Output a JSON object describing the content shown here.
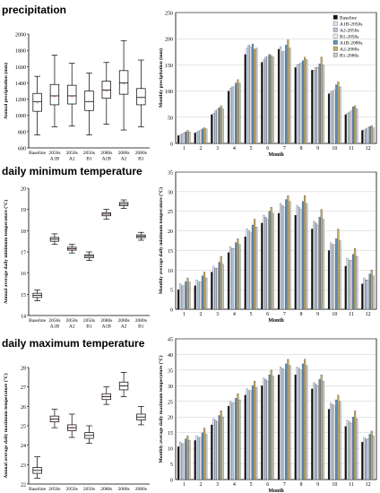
{
  "sections": [
    {
      "title": "precipitation"
    },
    {
      "title": "daily minimum temperature"
    },
    {
      "title": "daily maximum temperature"
    }
  ],
  "chart_data": [
    {
      "type": "box",
      "section": 0,
      "ylabel": "Annual precipitation (mm)",
      "ylim": [
        600,
        2000
      ],
      "yticks": [
        600,
        800,
        1000,
        1200,
        1400,
        1600,
        1800,
        2000
      ],
      "categories": [
        "Baseline",
        "2050s A1B",
        "2050s A2",
        "2050s B1",
        "2080s A1B",
        "2080s A2",
        "2080s B1"
      ],
      "boxes": [
        {
          "min": 760,
          "q1": 1050,
          "median": 1170,
          "q3": 1270,
          "max": 1480,
          "mean": 1150
        },
        {
          "min": 860,
          "q1": 1130,
          "median": 1240,
          "q3": 1380,
          "max": 1740,
          "mean": 1230
        },
        {
          "min": 870,
          "q1": 1140,
          "median": 1240,
          "q3": 1370,
          "max": 1640,
          "mean": 1230
        },
        {
          "min": 760,
          "q1": 1060,
          "median": 1170,
          "q3": 1300,
          "max": 1520,
          "mean": 1170
        },
        {
          "min": 890,
          "q1": 1210,
          "median": 1310,
          "q3": 1420,
          "max": 1650,
          "mean": 1300
        },
        {
          "min": 820,
          "q1": 1260,
          "median": 1400,
          "q3": 1550,
          "max": 1920,
          "mean": 1380
        },
        {
          "min": 860,
          "q1": 1130,
          "median": 1220,
          "q3": 1330,
          "max": 1680,
          "mean": 1220
        }
      ]
    },
    {
      "type": "bar",
      "section": 0,
      "xlabel": "Month",
      "ylabel": "Monthly precipitation (mm)",
      "ylim": [
        0,
        250
      ],
      "yticks": [
        0,
        50,
        100,
        150,
        200,
        250
      ],
      "categories": [
        "1",
        "2",
        "3",
        "4",
        "5",
        "6",
        "7",
        "8",
        "9",
        "10",
        "11",
        "12"
      ],
      "legend_position": "top-right",
      "series": [
        {
          "name": "Baseline",
          "color": "#111111",
          "values": [
            15,
            20,
            55,
            100,
            170,
            155,
            180,
            145,
            140,
            95,
            55,
            25
          ]
        },
        {
          "name": "A1B-2050s",
          "color": "#d9e3f2",
          "values": [
            16,
            22,
            58,
            105,
            182,
            160,
            185,
            150,
            140,
            98,
            58,
            26
          ]
        },
        {
          "name": "A2-2050s",
          "color": "#b9c7da",
          "values": [
            18,
            24,
            62,
            108,
            188,
            165,
            175,
            152,
            145,
            100,
            60,
            28
          ]
        },
        {
          "name": "B1-2050s",
          "color": "#eeeeee",
          "values": [
            20,
            25,
            65,
            108,
            184,
            166,
            176,
            154,
            145,
            102,
            62,
            30
          ]
        },
        {
          "name": "A1B-2080s",
          "color": "#5f8fb8",
          "values": [
            22,
            28,
            68,
            115,
            190,
            170,
            188,
            158,
            152,
            112,
            70,
            32
          ]
        },
        {
          "name": "A2-2080s",
          "color": "#c8ad62",
          "values": [
            25,
            30,
            72,
            122,
            180,
            168,
            198,
            165,
            165,
            118,
            72,
            34
          ]
        },
        {
          "name": "B1-2080s",
          "color": "#c9c9c9",
          "values": [
            22,
            28,
            66,
            115,
            182,
            165,
            182,
            160,
            150,
            108,
            66,
            30
          ]
        }
      ]
    },
    {
      "type": "box",
      "section": 1,
      "ylabel": "Annual average daily minimum temperature (°C)",
      "ylim": [
        14,
        20
      ],
      "yticks": [
        14,
        15,
        16,
        17,
        18,
        19,
        20
      ],
      "categories": [
        "Baseline",
        "2050s A1B",
        "2050s A2",
        "2050s B1",
        "2080s A1B",
        "2080s A2",
        "2080s B1"
      ],
      "boxes": [
        {
          "min": 14.7,
          "q1": 14.85,
          "median": 14.95,
          "q3": 15.05,
          "max": 15.2,
          "mean": 14.95
        },
        {
          "min": 17.35,
          "q1": 17.5,
          "median": 17.6,
          "q3": 17.68,
          "max": 17.85,
          "mean": 17.58
        },
        {
          "min": 16.95,
          "q1": 17.08,
          "median": 17.15,
          "q3": 17.22,
          "max": 17.35,
          "mean": 17.15
        },
        {
          "min": 16.6,
          "q1": 16.72,
          "median": 16.8,
          "q3": 16.87,
          "max": 17.0,
          "mean": 16.8
        },
        {
          "min": 18.55,
          "q1": 18.7,
          "median": 18.78,
          "q3": 18.85,
          "max": 19.0,
          "mean": 18.78
        },
        {
          "min": 19.05,
          "q1": 19.17,
          "median": 19.25,
          "q3": 19.33,
          "max": 19.45,
          "mean": 19.25
        },
        {
          "min": 17.55,
          "q1": 17.67,
          "median": 17.73,
          "q3": 17.8,
          "max": 17.92,
          "mean": 17.73
        }
      ]
    },
    {
      "type": "bar",
      "section": 1,
      "xlabel": "Month",
      "ylabel": "Monthly average daily minimum temperature (°C)",
      "ylim": [
        0,
        35
      ],
      "yticks": [
        0,
        5,
        10,
        15,
        20,
        25,
        30,
        35
      ],
      "categories": [
        "1",
        "2",
        "3",
        "4",
        "5",
        "6",
        "7",
        "8",
        "9",
        "10",
        "11",
        "12"
      ],
      "series": [
        {
          "name": "Baseline",
          "color": "#111111",
          "values": [
            5,
            6,
            9.5,
            14.5,
            18.5,
            22,
            24.5,
            24,
            20.5,
            15,
            11,
            6.5
          ]
        },
        {
          "name": "A1B-2050s",
          "color": "#d9e3f2",
          "values": [
            6.5,
            7.5,
            11,
            16,
            20.5,
            24,
            27,
            26.5,
            22.5,
            17,
            13,
            8
          ]
        },
        {
          "name": "A2-2050s",
          "color": "#b9c7da",
          "values": [
            6,
            7,
            10.5,
            15.5,
            20,
            23.5,
            26.5,
            26,
            22,
            16.5,
            12.5,
            7.5
          ]
        },
        {
          "name": "B1-2050s",
          "color": "#eeeeee",
          "values": [
            6,
            7,
            10.5,
            15.5,
            19.5,
            23,
            26,
            25.5,
            21.5,
            16.5,
            12.5,
            7.5
          ]
        },
        {
          "name": "A1B-2080s",
          "color": "#5f8fb8",
          "values": [
            7,
            8.5,
            12,
            17,
            21.5,
            25,
            28,
            27.5,
            23.5,
            18,
            14,
            9
          ]
        },
        {
          "name": "A2-2080s",
          "color": "#c8ad62",
          "values": [
            8,
            9.5,
            13.5,
            18,
            23,
            26,
            29,
            29,
            25.5,
            20.5,
            15.5,
            10
          ]
        },
        {
          "name": "B1-2080s",
          "color": "#c9c9c9",
          "values": [
            7,
            8,
            11.5,
            16.5,
            21,
            24.5,
            27.5,
            27,
            23,
            17.5,
            13.5,
            8.5
          ]
        }
      ]
    },
    {
      "type": "box",
      "section": 2,
      "ylabel": "Annual average daily maximum temperature (°C)",
      "ylim": [
        22,
        28
      ],
      "yticks": [
        22,
        23,
        24,
        25,
        26,
        27,
        28
      ],
      "categories": [
        "Baseline",
        "2050s A1B",
        "2050s A2",
        "2050s B1",
        "2080s A1B",
        "2080s A2",
        "2080s B1"
      ],
      "boxes": [
        {
          "min": 22.3,
          "q1": 22.55,
          "median": 22.7,
          "q3": 22.85,
          "max": 23.4,
          "mean": 22.7
        },
        {
          "min": 24.9,
          "q1": 25.2,
          "median": 25.35,
          "q3": 25.5,
          "max": 25.85,
          "mean": 25.35
        },
        {
          "min": 24.4,
          "q1": 24.75,
          "median": 24.9,
          "q3": 25.05,
          "max": 25.6,
          "mean": 24.9
        },
        {
          "min": 24.1,
          "q1": 24.35,
          "median": 24.5,
          "q3": 24.65,
          "max": 25.0,
          "mean": 24.5
        },
        {
          "min": 26.1,
          "q1": 26.35,
          "median": 26.5,
          "q3": 26.65,
          "max": 27.0,
          "mean": 26.5
        },
        {
          "min": 26.5,
          "q1": 26.85,
          "median": 27.05,
          "q3": 27.25,
          "max": 27.75,
          "mean": 27.05
        },
        {
          "min": 25.05,
          "q1": 25.3,
          "median": 25.45,
          "q3": 25.6,
          "max": 26.0,
          "mean": 25.45
        }
      ]
    },
    {
      "type": "bar",
      "section": 2,
      "xlabel": "Month",
      "ylabel": "Monthly average daily maximum temperature (°C)",
      "ylim": [
        0,
        45
      ],
      "yticks": [
        0,
        5,
        10,
        15,
        20,
        25,
        30,
        35,
        40,
        45
      ],
      "categories": [
        "1",
        "2",
        "3",
        "4",
        "5",
        "6",
        "7",
        "8",
        "9",
        "10",
        "11",
        "12"
      ],
      "series": [
        {
          "name": "Baseline",
          "color": "#111111",
          "values": [
            10.5,
            12.5,
            17.5,
            23.5,
            27,
            30,
            33.5,
            33.5,
            29,
            22.5,
            17,
            12
          ]
        },
        {
          "name": "A1B-2050s",
          "color": "#d9e3f2",
          "values": [
            12,
            14,
            19.5,
            25,
            29,
            32.5,
            36,
            36,
            31,
            24.5,
            19,
            13.5
          ]
        },
        {
          "name": "A2-2050s",
          "color": "#b9c7da",
          "values": [
            11.5,
            13.5,
            19,
            24.5,
            28.5,
            32,
            35.5,
            35.5,
            30.5,
            24,
            18.5,
            13
          ]
        },
        {
          "name": "B1-2050s",
          "color": "#eeeeee",
          "values": [
            11.5,
            13.5,
            18.5,
            24.5,
            28.5,
            31.5,
            35,
            35,
            30,
            23.5,
            18,
            13
          ]
        },
        {
          "name": "A1B-2080s",
          "color": "#5f8fb8",
          "values": [
            13,
            15,
            20.5,
            26,
            30,
            33.5,
            37,
            37,
            32,
            25.5,
            20,
            14.5
          ]
        },
        {
          "name": "A2-2080s",
          "color": "#c8ad62",
          "values": [
            14,
            16.5,
            22,
            27.5,
            31.5,
            35,
            38.5,
            38.5,
            33.5,
            27,
            22,
            15.5
          ]
        },
        {
          "name": "B1-2080s",
          "color": "#c9c9c9",
          "values": [
            12.5,
            14.5,
            20,
            25.5,
            29.5,
            33,
            36.5,
            36.5,
            31.5,
            25,
            19.5,
            14
          ]
        }
      ]
    }
  ]
}
